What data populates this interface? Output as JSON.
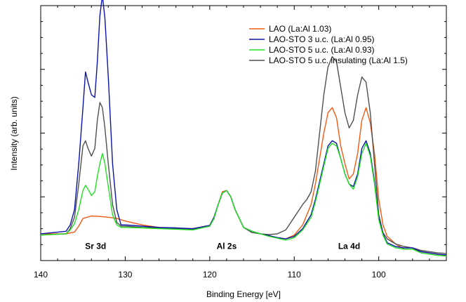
{
  "chart_data": {
    "type": "line",
    "xlabel": "Binding Energy [eV]",
    "ylabel": "Intensity (arb. units)",
    "xlim": [
      140,
      92
    ],
    "x_reversed": true,
    "ylim": [
      0,
      100
    ],
    "grid": false,
    "legend_position": "top-right",
    "x_ticks": [
      140,
      130,
      120,
      110,
      100
    ],
    "x_tick_labels": [
      "140",
      "130",
      "120",
      "110",
      "100"
    ],
    "y_tick_labels": [],
    "annotations": [
      {
        "text": "Sr 3d",
        "x": 133.5,
        "y": 4.5
      },
      {
        "text": "Al 2s",
        "x": 118.0,
        "y": 4.5
      },
      {
        "text": "La 4d",
        "x": 103.5,
        "y": 4.5
      }
    ],
    "series": [
      {
        "name": "LAO (La:Al 1.03)",
        "color": "#f05a14",
        "x": [
          140,
          137,
          136,
          135.5,
          135,
          134,
          133,
          132,
          131,
          130,
          128,
          126,
          124,
          122,
          120,
          119.5,
          119,
          118.5,
          118,
          117.5,
          117,
          116,
          115,
          114,
          113,
          112,
          111,
          110,
          109,
          108,
          107.5,
          107,
          106.5,
          106,
          105.5,
          105,
          104.5,
          104,
          103.5,
          103,
          102.5,
          102,
          101.5,
          101,
          100.5,
          100,
          99.5,
          99,
          98,
          97,
          96,
          95,
          94,
          93,
          92
        ],
        "values": [
          10.5,
          10.5,
          11.2,
          13.5,
          16.5,
          17.5,
          17.3,
          17.0,
          16.5,
          15.5,
          14.0,
          13.0,
          12.5,
          12.5,
          13.8,
          17,
          22,
          27,
          27.5,
          25,
          20,
          13,
          11.5,
          10.5,
          9.8,
          9.0,
          8.5,
          10,
          14,
          22,
          30,
          40,
          50,
          58,
          60,
          56,
          45,
          38,
          32,
          34,
          42,
          55,
          60,
          54,
          42,
          24,
          14,
          9.5,
          6.5,
          4.5,
          4.5,
          3.5,
          3.0,
          2.5,
          2.0
        ]
      },
      {
        "name": "LAO-STO 3 u.c. (La:Al 0.95)",
        "color": "#0a14a8",
        "x": [
          140,
          137,
          136.5,
          136,
          135.5,
          135,
          134.7,
          134.4,
          134,
          133.6,
          133.3,
          133,
          132.7,
          132.4,
          132,
          131.5,
          131,
          130.5,
          130,
          128,
          126,
          124,
          122,
          120,
          119.5,
          119,
          118.5,
          118,
          117.5,
          117,
          116,
          115,
          114,
          113,
          112,
          111,
          110,
          109,
          108,
          107.5,
          107,
          106.5,
          106,
          105.5,
          105,
          104.5,
          104,
          103.5,
          103,
          102.5,
          102,
          101.5,
          101,
          100.5,
          100,
          99.5,
          99,
          98,
          97,
          96,
          95,
          94,
          93,
          92
        ],
        "values": [
          10.5,
          11.5,
          14,
          20,
          38,
          60,
          74,
          70,
          65,
          64,
          78,
          96,
          104,
          95,
          72,
          38,
          20,
          14,
          14,
          13.5,
          13,
          12.8,
          12.5,
          13.8,
          17,
          22,
          26.5,
          27.5,
          25,
          20,
          13,
          11.5,
          10.5,
          9.8,
          9.0,
          8.5,
          9.5,
          12.5,
          18,
          24,
          31,
          38,
          45,
          47,
          46,
          40,
          34,
          30,
          29,
          34,
          44,
          47,
          42,
          31,
          17,
          10.5,
          7,
          5.5,
          5.0,
          5.0,
          3.5,
          3.0,
          2.5,
          2.2
        ]
      },
      {
        "name": "LAO-STO 5 u.c. (La:Al 0.93)",
        "color": "#22e022",
        "x": [
          140,
          137,
          136.5,
          136,
          135.5,
          135,
          134.7,
          134.4,
          134,
          133.6,
          133.3,
          133,
          132.7,
          132.4,
          132,
          131.5,
          131,
          130.5,
          130,
          128,
          126,
          124,
          122,
          120,
          119.5,
          119,
          118.5,
          118,
          117.5,
          117,
          116,
          115,
          114,
          113,
          112,
          111,
          110,
          109,
          108,
          107.5,
          107,
          106.5,
          106,
          105.5,
          105,
          104.5,
          104,
          103.5,
          103,
          102.5,
          102,
          101.5,
          101,
          100.5,
          100,
          99.5,
          99,
          98,
          97,
          96,
          95,
          94,
          93,
          92
        ],
        "values": [
          10.0,
          10.5,
          12,
          14.5,
          20,
          27.5,
          29.5,
          28,
          25.5,
          27,
          33,
          38,
          42,
          38,
          29,
          18,
          14,
          13,
          13,
          12.8,
          12.5,
          12.3,
          12.0,
          13.5,
          16.5,
          22,
          26.5,
          27.5,
          25,
          20,
          13,
          11.5,
          10.5,
          9.5,
          8.8,
          8.0,
          9.0,
          12,
          17,
          23,
          30,
          37,
          44,
          46,
          45,
          40,
          34,
          30,
          28,
          33,
          42,
          46,
          41,
          30,
          16,
          10,
          6.5,
          5.0,
          4.5,
          4.5,
          3.0,
          2.5,
          2.0,
          1.8
        ]
      },
      {
        "name": "LAO-STO 5 u.c. insulating (La:Al 1.5)",
        "color": "#505050",
        "x": [
          140,
          137,
          136.5,
          136,
          135.5,
          135,
          134.7,
          134.4,
          134,
          133.6,
          133.3,
          133,
          132.7,
          132.4,
          132,
          131.5,
          131,
          130.5,
          130,
          128,
          126,
          124,
          122,
          120,
          119.5,
          119,
          118.5,
          118,
          117.5,
          117,
          116,
          115,
          114,
          113,
          112,
          111,
          110,
          109,
          108.5,
          108,
          107.5,
          107,
          106.5,
          106,
          105.5,
          105,
          104.5,
          104,
          103.5,
          103,
          102.5,
          102,
          101.5,
          101,
          100.5,
          100,
          99.5,
          99,
          98,
          97,
          96,
          95,
          94,
          93,
          92
        ],
        "values": [
          10.0,
          10.5,
          12.5,
          17,
          30,
          45,
          47,
          44,
          41,
          44,
          55,
          62,
          60,
          52,
          38,
          22,
          15,
          13.5,
          13.5,
          13.0,
          12.8,
          12.5,
          12.3,
          13.5,
          16.5,
          22,
          26.5,
          27.5,
          25,
          20,
          13,
          11,
          10.5,
          10.2,
          10.5,
          12,
          17,
          22,
          24,
          27,
          35,
          50,
          65,
          76,
          80,
          78,
          68,
          58,
          52,
          55,
          65,
          72,
          70,
          58,
          38,
          18,
          11,
          8.5,
          6.5,
          5.5,
          5.0,
          4.0,
          3.5,
          3.0,
          2.8
        ]
      }
    ]
  }
}
